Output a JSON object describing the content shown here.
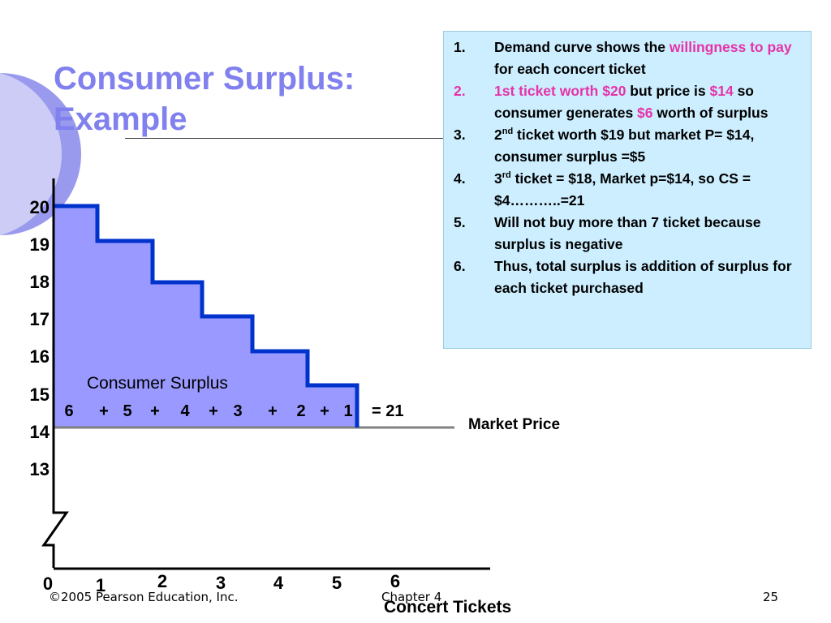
{
  "title_line1": "Consumer Surplus:",
  "title_line2": "Example",
  "info_items": [
    {
      "num": "1.",
      "highlight": false
    },
    {
      "num": "2.",
      "highlight": true
    },
    {
      "num": "3.",
      "highlight": false
    },
    {
      "num": "4.",
      "highlight": false
    },
    {
      "num": "5.",
      "highlight": false
    },
    {
      "num": "6.",
      "highlight": false
    }
  ],
  "info_text": {
    "i1_a": "Demand curve shows the ",
    "i1_pink": "willingness to pay",
    "i1_b": " for each concert ticket",
    "i2_pink1": "1st ticket worth $20",
    "i2_a": " but price is ",
    "i2_pink2": "$14",
    "i2_b": " so consumer generates ",
    "i2_pink3": "$6",
    "i2_c": " worth of surplus",
    "i3_a": "2",
    "i3_sup": "nd",
    "i3_b": " ticket worth $19 but market P= $14, consumer surplus =$5",
    "i4_a": "3",
    "i4_sup": "rd",
    "i4_b": " ticket = $18, Market p=$14, so CS = $4………..=21",
    "i5": "Will not buy more than 7 ticket because surplus is negative",
    "i6": "Thus, total surplus is addition of surplus for each ticket purchased"
  },
  "diagram": {
    "y_ticks": [
      "20",
      "19",
      "18",
      "17",
      "16",
      "15",
      "14",
      "13"
    ],
    "x_ticks": [
      "0",
      "1",
      "2",
      "3",
      "4",
      "5",
      "6"
    ],
    "x_axis_label": "Concert Tickets",
    "region_label": "Consumer Surplus",
    "sum_terms": [
      "6",
      "+",
      "5",
      "+",
      "4",
      "+",
      "3",
      "+",
      "2",
      "+",
      "1"
    ],
    "sum_result": "= 21",
    "market_price_label": "Market Price",
    "demand_steps": [
      20,
      19,
      18,
      17,
      16,
      15
    ],
    "market_price": 14,
    "colors": {
      "surplus_fill": "#9999ff",
      "demand_line": "#0033cc",
      "market_line": "#808080",
      "deco_circle": "#c8c8f8"
    }
  },
  "footer": {
    "copyright": "©2005 Pearson Education, Inc.",
    "chapter": "Chapter 4",
    "page": "25"
  }
}
